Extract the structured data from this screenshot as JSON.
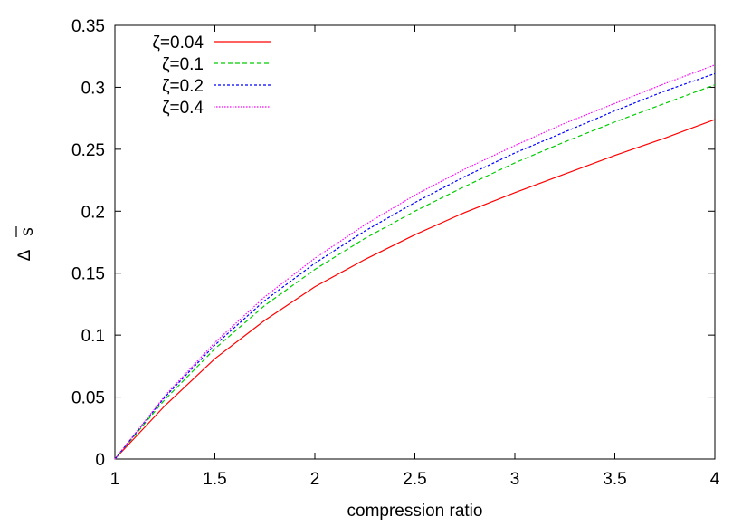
{
  "chart_data": {
    "type": "line",
    "title": "",
    "xlabel": "compression ratio",
    "ylabel_main": "Δ",
    "ylabel_sub": "s",
    "xlim": [
      1,
      4
    ],
    "ylim": [
      0,
      0.35
    ],
    "xticks": [
      1,
      1.5,
      2,
      2.5,
      3,
      3.5,
      4
    ],
    "xtick_labels": [
      "1",
      "1.5",
      "2",
      "2.5",
      "3",
      "3.5",
      "4"
    ],
    "yticks": [
      0,
      0.05,
      0.1,
      0.15,
      0.2,
      0.25,
      0.3,
      0.35
    ],
    "ytick_labels": [
      "0",
      "0.05",
      "0.1",
      "0.15",
      "0.2",
      "0.25",
      "0.3",
      "0.35"
    ],
    "grid": false,
    "legend_position": "top-left",
    "series": [
      {
        "name": "ζ=0.04",
        "color": "#ff0000",
        "dash": "solid",
        "x": [
          1.0,
          1.25,
          1.5,
          1.75,
          2.0,
          2.25,
          2.5,
          2.75,
          3.0,
          3.25,
          3.5,
          3.75,
          4.0
        ],
        "y": [
          0.0,
          0.043,
          0.081,
          0.112,
          0.139,
          0.161,
          0.181,
          0.199,
          0.215,
          0.23,
          0.245,
          0.259,
          0.274
        ]
      },
      {
        "name": "ζ=0.1",
        "color": "#00cc00",
        "dash": "dashed",
        "x": [
          1.0,
          1.25,
          1.5,
          1.75,
          2.0,
          2.25,
          2.5,
          2.75,
          3.0,
          3.25,
          3.5,
          3.75,
          4.0
        ],
        "y": [
          0.0,
          0.048,
          0.089,
          0.124,
          0.153,
          0.178,
          0.2,
          0.22,
          0.239,
          0.256,
          0.272,
          0.287,
          0.302
        ]
      },
      {
        "name": "ζ=0.2",
        "color": "#0000ff",
        "dash": "dotted-dense",
        "x": [
          1.0,
          1.25,
          1.5,
          1.75,
          2.0,
          2.25,
          2.5,
          2.75,
          3.0,
          3.25,
          3.5,
          3.75,
          4.0
        ],
        "y": [
          0.0,
          0.05,
          0.092,
          0.128,
          0.158,
          0.184,
          0.207,
          0.228,
          0.247,
          0.264,
          0.281,
          0.297,
          0.311
        ]
      },
      {
        "name": "ζ=0.4",
        "color": "#ff00ff",
        "dash": "dotted",
        "x": [
          1.0,
          1.25,
          1.5,
          1.75,
          2.0,
          2.25,
          2.5,
          2.75,
          3.0,
          3.25,
          3.5,
          3.75,
          4.0
        ],
        "y": [
          0.0,
          0.051,
          0.094,
          0.131,
          0.162,
          0.189,
          0.213,
          0.234,
          0.253,
          0.271,
          0.287,
          0.303,
          0.318
        ]
      }
    ]
  }
}
